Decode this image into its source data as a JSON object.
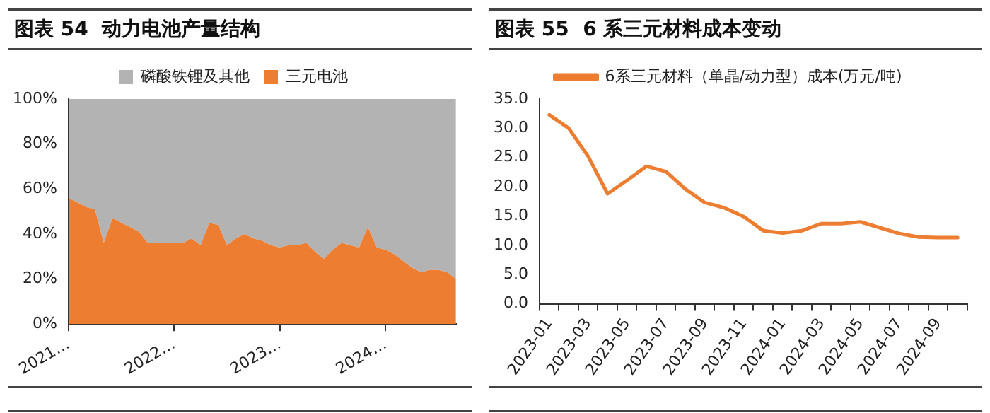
{
  "chart_data": [
    {
      "type": "area",
      "title": "图表 54  动力电池产量结构",
      "stacked": true,
      "legend": "top",
      "categories": [
        "2021…",
        null,
        null,
        null,
        null,
        null,
        null,
        null,
        null,
        null,
        null,
        null,
        "2022…",
        null,
        null,
        null,
        null,
        null,
        null,
        null,
        null,
        null,
        null,
        null,
        "2023…",
        null,
        null,
        null,
        null,
        null,
        null,
        null,
        null,
        null,
        null,
        null,
        "2024…",
        null,
        null,
        null,
        null,
        null,
        null,
        null,
        null
      ],
      "series": [
        {
          "name": "三元电池",
          "color": "#ed7d31",
          "values": [
            56,
            54,
            52,
            51,
            36,
            47,
            45,
            43,
            41,
            36,
            36,
            36,
            36,
            36,
            38,
            35,
            45,
            44,
            35,
            38,
            40,
            38,
            37,
            35,
            34,
            35,
            35,
            36,
            32,
            29,
            33,
            36,
            35,
            34,
            43,
            34,
            33,
            31,
            28,
            25,
            23,
            24,
            24,
            23,
            20
          ]
        },
        {
          "name": "磷酸铁锂及其他",
          "color": "#b3b3b3",
          "values": [
            44,
            46,
            48,
            49,
            64,
            53,
            55,
            57,
            59,
            64,
            64,
            64,
            64,
            64,
            62,
            65,
            55,
            56,
            65,
            62,
            60,
            62,
            63,
            65,
            66,
            65,
            65,
            64,
            68,
            71,
            67,
            64,
            65,
            66,
            57,
            66,
            67,
            69,
            72,
            75,
            77,
            76,
            76,
            77,
            80
          ]
        }
      ],
      "ylim": [
        0,
        100
      ],
      "yticks": [
        {
          "value": 0,
          "label": "0%"
        },
        {
          "value": 20,
          "label": "20%"
        },
        {
          "value": 40,
          "label": "40%"
        },
        {
          "value": 60,
          "label": "60%"
        },
        {
          "value": 80,
          "label": "80%"
        },
        {
          "value": 100,
          "label": "100%"
        }
      ]
    },
    {
      "type": "line",
      "title": "图表 55  6 系三元材料成本变动",
      "legend": "top",
      "marker": "none",
      "categories": [
        "2023-01",
        null,
        "2023-03",
        null,
        "2023-05",
        null,
        "2023-07",
        null,
        "2023-09",
        null,
        "2023-11",
        null,
        "2024-01",
        null,
        "2024-03",
        null,
        "2024-05",
        null,
        "2024-07",
        null,
        "2024-09",
        null
      ],
      "series": [
        {
          "name": "6系三元材料（单晶/动力型）成本(万元/吨)",
          "color": "#ed7d31",
          "values": [
            32.3,
            30.0,
            25.2,
            18.8,
            21.1,
            23.5,
            22.6,
            19.6,
            17.3,
            16.4,
            14.9,
            12.5,
            12.1,
            12.5,
            13.7,
            13.7,
            14.0,
            13.0,
            12.0,
            11.4,
            11.3,
            11.3
          ]
        }
      ],
      "ylim": [
        0,
        35
      ],
      "yticks": [
        {
          "value": 0,
          "label": "0.0"
        },
        {
          "value": 5,
          "label": "5.0"
        },
        {
          "value": 10,
          "label": "10.0"
        },
        {
          "value": 15,
          "label": "15.0"
        },
        {
          "value": 20,
          "label": "20.0"
        },
        {
          "value": 25,
          "label": "25.0"
        },
        {
          "value": 30,
          "label": "30.0"
        },
        {
          "value": 35,
          "label": "35.0"
        }
      ]
    }
  ]
}
